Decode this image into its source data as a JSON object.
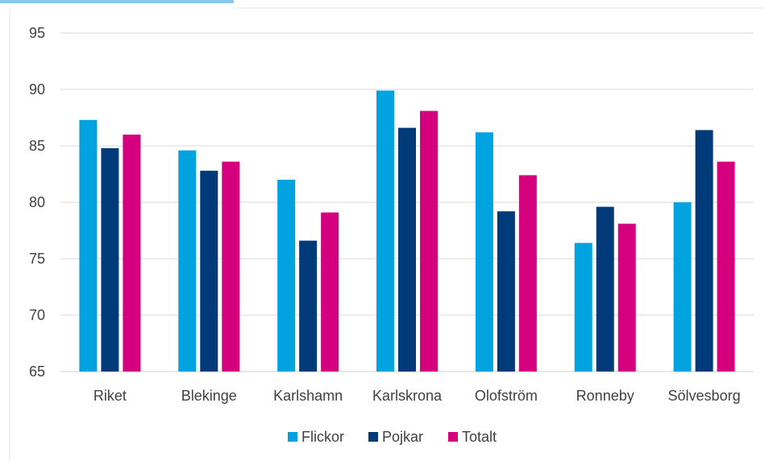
{
  "chart_data": {
    "type": "bar",
    "categories": [
      "Riket",
      "Blekinge",
      "Karlshamn",
      "Karlskrona",
      "Olofström",
      "Ronneby",
      "Sölvesborg"
    ],
    "series": [
      {
        "name": "Flickor",
        "color": "#00a3e0",
        "values": [
          87.3,
          84.6,
          82.0,
          89.9,
          86.2,
          76.4,
          80.0
        ]
      },
      {
        "name": "Pojkar",
        "color": "#003a78",
        "values": [
          84.8,
          82.8,
          76.6,
          86.6,
          79.2,
          79.6,
          86.4
        ]
      },
      {
        "name": "Totalt",
        "color": "#d4007d",
        "values": [
          86.0,
          83.6,
          79.1,
          88.1,
          82.4,
          78.1,
          83.6
        ]
      }
    ],
    "yticks": [
      "65",
      "70",
      "75",
      "80",
      "85",
      "90",
      "95"
    ],
    "ylim": [
      65,
      95
    ],
    "grid": true,
    "legend_position": "bottom"
  }
}
